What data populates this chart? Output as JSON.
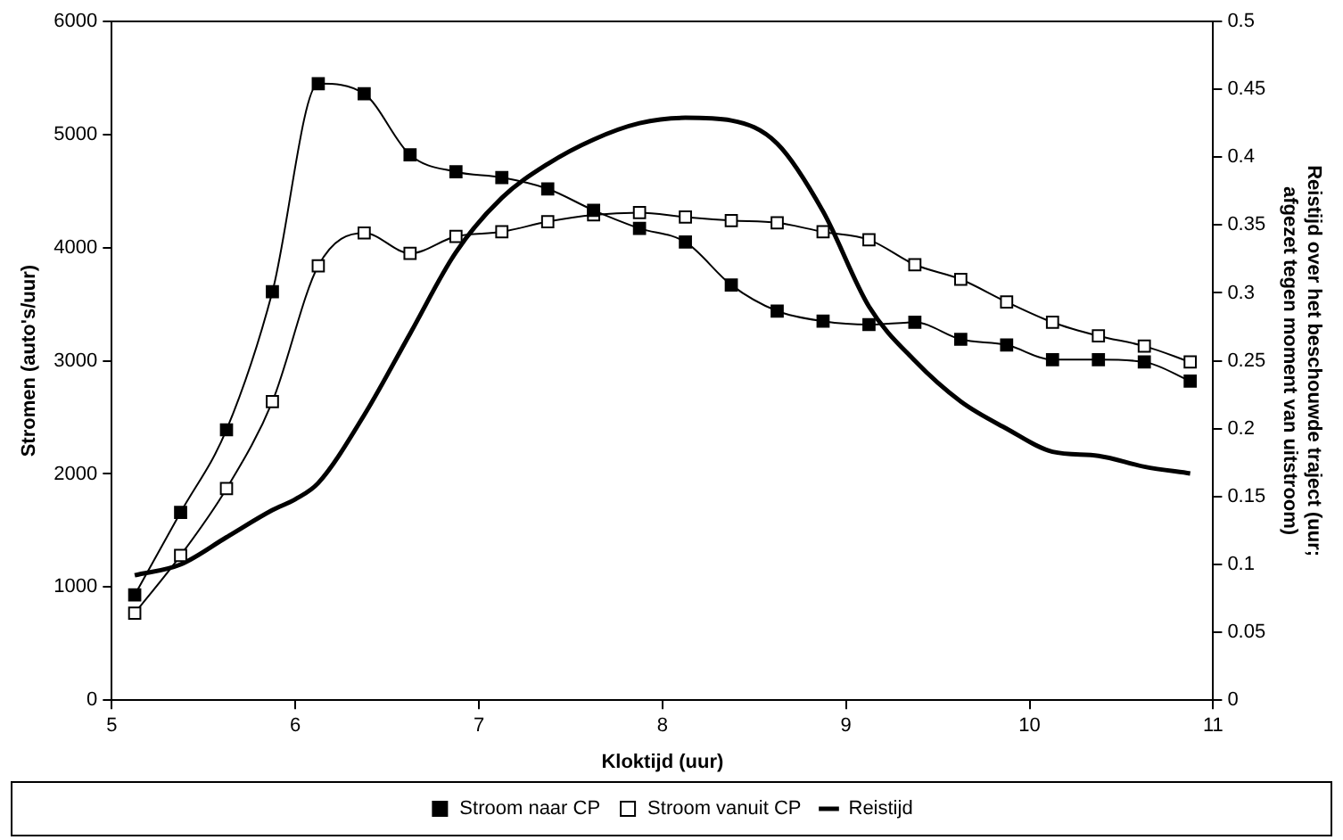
{
  "chart_data": {
    "type": "line",
    "xlabel": "Kloktijd (uur)",
    "ylabel": "Stromen (auto's/uur)",
    "y2label": "Reistijd over het beschouwde traject (uur; afgezet tegen moment van uitstroom)",
    "x": [
      5.125,
      5.375,
      5.625,
      5.875,
      6.125,
      6.375,
      6.625,
      6.875,
      7.125,
      7.375,
      7.625,
      7.875,
      8.125,
      8.375,
      8.625,
      8.875,
      9.125,
      9.375,
      9.625,
      9.875,
      10.125,
      10.375,
      10.625,
      10.875
    ],
    "xlim": [
      5,
      11
    ],
    "xticks": [
      5,
      6,
      7,
      8,
      9,
      10,
      11
    ],
    "ylim": [
      0,
      6000
    ],
    "yticks": [
      0,
      1000,
      2000,
      3000,
      4000,
      5000,
      6000
    ],
    "y2lim": [
      0,
      0.5
    ],
    "y2ticks": [
      0,
      0.05,
      0.1,
      0.15,
      0.2,
      0.25,
      0.3,
      0.35,
      0.4,
      0.45,
      0.5
    ],
    "grid": false,
    "legend": "bottom",
    "line_style": "solid",
    "series": [
      {
        "name": "Stroom naar CP",
        "color": "#000000",
        "marker": "square",
        "values": [
          930,
          1660,
          2390,
          3610,
          5450,
          5360,
          4820,
          4670,
          4620,
          4520,
          4330,
          4170,
          4050,
          3670,
          3440,
          3350,
          3320,
          3340,
          3190,
          3140,
          3010,
          3010,
          2990,
          2820
        ]
      },
      {
        "name": "Stroom vanuit CP",
        "color": "#000000",
        "marker": "square_open",
        "values": [
          770,
          1280,
          1870,
          2640,
          3840,
          4130,
          3950,
          4100,
          4140,
          4230,
          4290,
          4310,
          4270,
          4240,
          4220,
          4140,
          4070,
          3850,
          3720,
          3520,
          3340,
          3220,
          3130,
          2990
        ]
      },
      {
        "name": "Reistijd",
        "color": "#000000",
        "marker": "none",
        "axis": "y2",
        "x": [
          5.125,
          5.375,
          5.625,
          5.875,
          6.0,
          6.125,
          6.375,
          6.625,
          6.875,
          7.125,
          7.375,
          7.625,
          7.875,
          8.125,
          8.375,
          8.625,
          8.875,
          9.125,
          9.375,
          9.625,
          9.875,
          10.125,
          10.375,
          10.625,
          10.875
        ],
        "values": [
          0.092,
          0.1,
          0.12,
          0.14,
          0.148,
          0.16,
          0.21,
          0.27,
          0.33,
          0.37,
          0.395,
          0.413,
          0.425,
          0.429,
          0.427,
          0.41,
          0.36,
          0.29,
          0.25,
          0.22,
          0.2,
          0.183,
          0.18,
          0.172,
          0.167
        ]
      }
    ]
  }
}
